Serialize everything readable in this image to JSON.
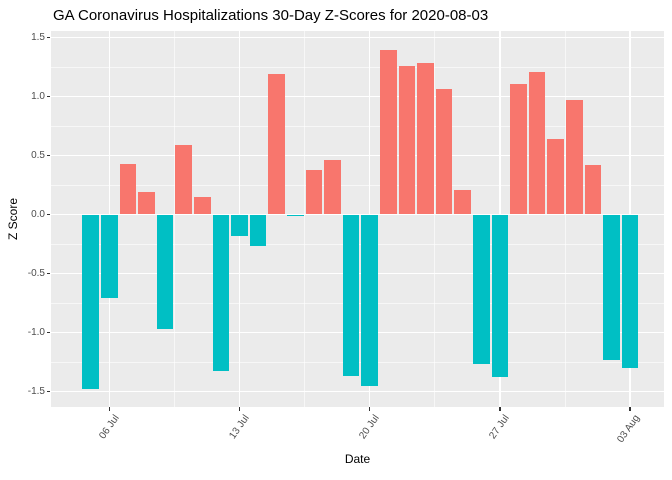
{
  "chart_data": {
    "type": "bar",
    "title": "GA Coronavirus Hospitalizations 30-Day Z-Scores for 2020-08-03",
    "xlabel": "Date",
    "ylabel": "Z Score",
    "legend_position": "none",
    "grid": "major+minor, white on grey panel",
    "ylim": [
      -1.62,
      1.54
    ],
    "y_tick_labels": [
      "1.5",
      "1.0",
      "0.5",
      "0.0",
      "-0.5",
      "-1.0",
      "-1.5"
    ],
    "y_tick_values": [
      1.5,
      1.0,
      0.5,
      0.0,
      -0.5,
      -1.0,
      -1.5
    ],
    "x_ticks": [
      {
        "label": "06 Jul",
        "day_index": 1
      },
      {
        "label": "13 Jul",
        "day_index": 8
      },
      {
        "label": "20 Jul",
        "day_index": 15
      },
      {
        "label": "27 Jul",
        "day_index": 22
      },
      {
        "label": "03 Aug",
        "day_index": 29
      }
    ],
    "dates": [
      "2020-07-05",
      "2020-07-06",
      "2020-07-07",
      "2020-07-08",
      "2020-07-09",
      "2020-07-10",
      "2020-07-11",
      "2020-07-12",
      "2020-07-13",
      "2020-07-14",
      "2020-07-15",
      "2020-07-16",
      "2020-07-17",
      "2020-07-18",
      "2020-07-19",
      "2020-07-20",
      "2020-07-21",
      "2020-07-22",
      "2020-07-23",
      "2020-07-24",
      "2020-07-25",
      "2020-07-26",
      "2020-07-27",
      "2020-07-28",
      "2020-07-29",
      "2020-07-30",
      "2020-07-31",
      "2020-08-01",
      "2020-08-02",
      "2020-08-03"
    ],
    "values": [
      -1.48,
      -0.71,
      0.43,
      0.19,
      -0.97,
      0.59,
      0.15,
      -1.33,
      -0.18,
      -0.27,
      1.19,
      -0.01,
      0.38,
      0.46,
      -1.37,
      -1.45,
      1.39,
      1.26,
      1.28,
      1.06,
      0.21,
      -1.27,
      -1.38,
      1.11,
      1.21,
      0.64,
      0.97,
      0.42,
      -1.23,
      -1.3
    ],
    "colors": {
      "positive": "#F8766D",
      "negative": "#00BFC4",
      "panel_background": "#EBEBEB",
      "gridline": "#FFFFFF",
      "axis_text": "#4D4D4D",
      "tick_mark": "#333333",
      "title_text": "#000000"
    }
  }
}
